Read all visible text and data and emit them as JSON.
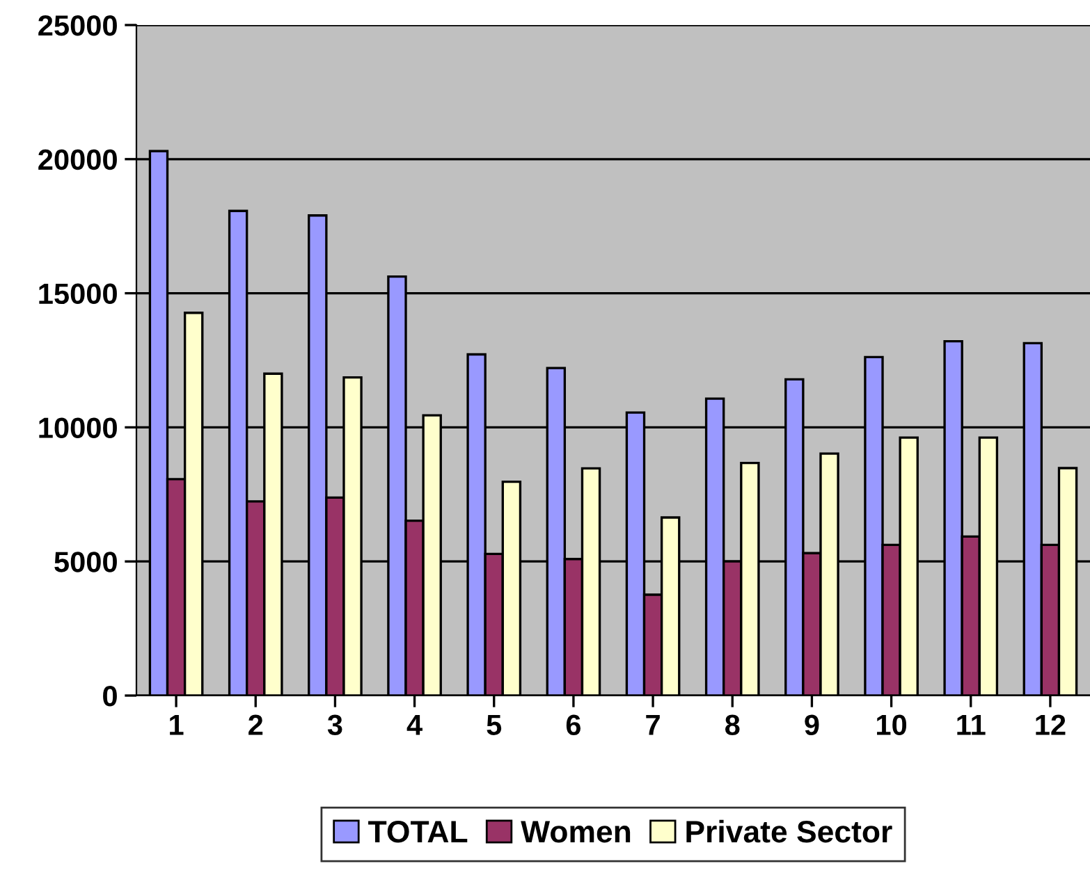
{
  "chart_data": {
    "type": "bar",
    "categories": [
      "1",
      "2",
      "3",
      "4",
      "5",
      "6",
      "7",
      "8",
      "9",
      "10",
      "11",
      "12"
    ],
    "series": [
      {
        "name": "TOTAL",
        "color": "#9999ff",
        "values": [
          20300,
          18070,
          17900,
          15620,
          12720,
          12210,
          10550,
          11070,
          11790,
          12620,
          13210,
          13140
        ]
      },
      {
        "name": "Women",
        "color": "#993366",
        "values": [
          8070,
          7240,
          7380,
          6520,
          5280,
          5090,
          3760,
          5000,
          5310,
          5620,
          5930,
          5620
        ]
      },
      {
        "name": "Private Sector",
        "color": "#ffffcc",
        "values": [
          14270,
          12000,
          11860,
          10450,
          7970,
          8470,
          6640,
          8670,
          9020,
          9620,
          9620,
          8480
        ]
      }
    ],
    "ylim": [
      0,
      25000
    ],
    "yticks": [
      0,
      5000,
      10000,
      15000,
      20000,
      25000
    ],
    "grid": "y",
    "legend": "bottom"
  }
}
